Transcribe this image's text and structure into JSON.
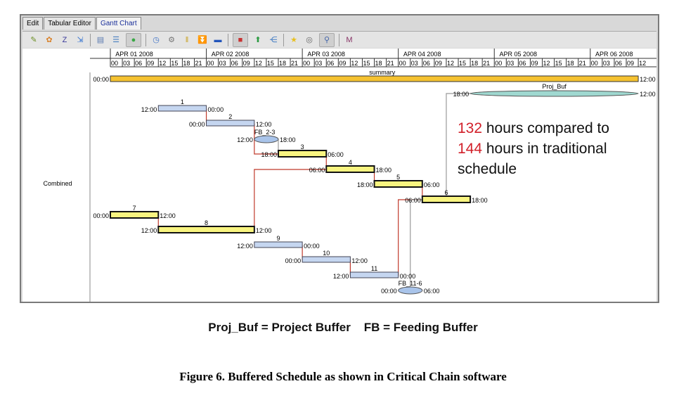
{
  "tabs": [
    {
      "label": "Edit"
    },
    {
      "label": "Tabular Editor"
    },
    {
      "label": "Gantt Chart",
      "active": true
    }
  ],
  "toolbar": {
    "icons": [
      "edit-icon",
      "color-icon",
      "text-icon",
      "link-help-icon",
      "table-icon",
      "gantt-icon",
      "toggle-icon",
      "clock-icon",
      "settings-icon",
      "split-icon",
      "collapse-icon",
      "move-icon",
      "buffer-icon",
      "export-icon",
      "network-icon",
      "star-icon",
      "view-icon",
      "filter-icon",
      "m-icon"
    ]
  },
  "chart_data": {
    "type": "gantt",
    "row_group_label": "Combined",
    "days": [
      "APR 01 2008",
      "APR 02 2008",
      "APR 03 2008",
      "APR 04 2008",
      "APR 05 2008",
      "APR 06 2008"
    ],
    "hour_ticks": [
      "00",
      "03",
      "06",
      "09",
      "12",
      "15",
      "18",
      "21"
    ],
    "range": [
      "2008-04-01T00:00",
      "2008-04-06T12:00"
    ],
    "colors": {
      "summary": "#f5c230",
      "critical": "#f8f480",
      "noncritical": "#c5d6f0",
      "project_buffer": "#9fd8d0",
      "feeding_buffer": "#a9c4ea",
      "critical_link": "#c0392b",
      "buffer_link": "#999999"
    },
    "tasks": [
      {
        "id": "summary",
        "name": "summary",
        "kind": "summary",
        "start": "2008-04-01T00:00",
        "end": "2008-04-06T12:00",
        "start_label": "00:00",
        "end_label": "12:00"
      },
      {
        "id": "pb",
        "name": "Proj_Buf",
        "kind": "project_buffer",
        "start": "2008-04-04T18:00",
        "end": "2008-04-06T12:00",
        "start_label": "18:00",
        "end_label": "12:00"
      },
      {
        "id": "1",
        "name": "1",
        "kind": "noncritical",
        "start": "2008-04-01T12:00",
        "end": "2008-04-02T00:00",
        "start_label": "12:00",
        "end_label": "00:00"
      },
      {
        "id": "2",
        "name": "2",
        "kind": "noncritical",
        "start": "2008-04-02T00:00",
        "end": "2008-04-02T12:00",
        "start_label": "00:00",
        "end_label": "12:00"
      },
      {
        "id": "fb23",
        "name": "FB_2-3",
        "kind": "feeding_buffer",
        "start": "2008-04-02T12:00",
        "end": "2008-04-02T18:00",
        "start_label": "12:00",
        "end_label": "18:00"
      },
      {
        "id": "3",
        "name": "3",
        "kind": "critical",
        "start": "2008-04-02T18:00",
        "end": "2008-04-03T06:00",
        "start_label": "18:00",
        "end_label": "06:00"
      },
      {
        "id": "4",
        "name": "4",
        "kind": "critical",
        "start": "2008-04-03T06:00",
        "end": "2008-04-03T18:00",
        "start_label": "06:00",
        "end_label": "18:00"
      },
      {
        "id": "5",
        "name": "5",
        "kind": "critical",
        "start": "2008-04-03T18:00",
        "end": "2008-04-04T06:00",
        "start_label": "18:00",
        "end_label": "06:00"
      },
      {
        "id": "6",
        "name": "6",
        "kind": "critical",
        "start": "2008-04-04T06:00",
        "end": "2008-04-04T18:00",
        "start_label": "06:00",
        "end_label": "18:00"
      },
      {
        "id": "7",
        "name": "7",
        "kind": "critical",
        "start": "2008-04-01T00:00",
        "end": "2008-04-01T12:00",
        "start_label": "00:00",
        "end_label": "12:00"
      },
      {
        "id": "8",
        "name": "8",
        "kind": "critical",
        "start": "2008-04-01T12:00",
        "end": "2008-04-02T12:00",
        "start_label": "12:00",
        "end_label": "12:00"
      },
      {
        "id": "9",
        "name": "9",
        "kind": "noncritical",
        "start": "2008-04-02T12:00",
        "end": "2008-04-03T00:00",
        "start_label": "12:00",
        "end_label": "00:00"
      },
      {
        "id": "10",
        "name": "10",
        "kind": "noncritical",
        "start": "2008-04-03T00:00",
        "end": "2008-04-03T12:00",
        "start_label": "00:00",
        "end_label": "12:00"
      },
      {
        "id": "11",
        "name": "11",
        "kind": "noncritical",
        "start": "2008-04-03T12:00",
        "end": "2008-04-04T00:00",
        "start_label": "12:00",
        "end_label": "00:00"
      },
      {
        "id": "fb116",
        "name": "FB_11-6",
        "kind": "feeding_buffer",
        "start": "2008-04-04T00:00",
        "end": "2008-04-04T06:00",
        "start_label": "00:00",
        "end_label": "06:00"
      }
    ],
    "links": [
      {
        "from": "1",
        "to": "2",
        "type": "critical"
      },
      {
        "from": "2",
        "to": "3",
        "type": "critical"
      },
      {
        "from": "fb23",
        "to": "3",
        "type": "buffer"
      },
      {
        "from": "3",
        "to": "4",
        "type": "critical"
      },
      {
        "from": "4",
        "to": "5",
        "type": "critical"
      },
      {
        "from": "5",
        "to": "6",
        "type": "critical"
      },
      {
        "from": "7",
        "to": "8",
        "type": "critical"
      },
      {
        "from": "8",
        "to": "4",
        "type": "critical"
      },
      {
        "from": "9",
        "to": "10",
        "type": "critical"
      },
      {
        "from": "10",
        "to": "11",
        "type": "critical"
      },
      {
        "from": "11",
        "to": "6",
        "type": "critical"
      },
      {
        "from": "fb116",
        "to": "6",
        "type": "buffer"
      },
      {
        "from": "6",
        "to": "pb",
        "type": "buffer"
      }
    ]
  },
  "annotation": {
    "line1_num": "132",
    "line1_text": " hours compared to",
    "line2_num": "144",
    "line2_text": " hours in traditional",
    "line3_text": "schedule"
  },
  "legend": "Proj_Buf = Project Buffer    FB = Feeding Buffer",
  "caption": "Figure 6.  Buffered Schedule as shown in Critical Chain software"
}
